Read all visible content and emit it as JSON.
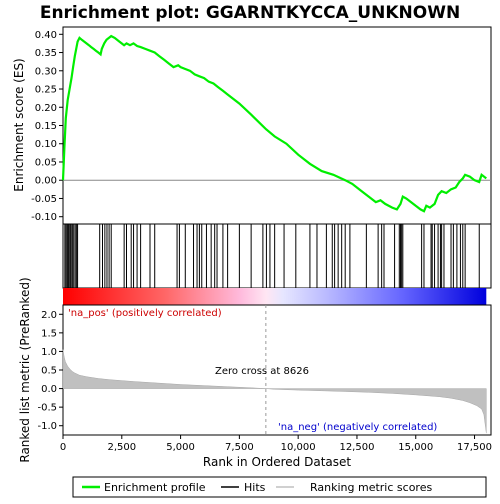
{
  "chart_data": {
    "type": "line",
    "title": "Enrichment plot: GGARNTKYCCA_UNKNOWN",
    "es_panel": {
      "ylabel": "Enrichment score (ES)",
      "ylim": [
        -0.12,
        0.42
      ],
      "yticks": [
        -0.1,
        -0.05,
        0.0,
        0.05,
        0.1,
        0.15,
        0.2,
        0.25,
        0.3,
        0.35,
        0.4
      ],
      "ytick_labels": [
        "-0.10",
        "-0.05",
        "0.00",
        "0.05",
        "0.10",
        "0.15",
        "0.20",
        "0.25",
        "0.30",
        "0.35",
        "0.40"
      ],
      "series": [
        {
          "name": "Enrichment profile",
          "color": "#00ee00",
          "x": [
            0,
            60,
            120,
            200,
            280,
            360,
            430,
            500,
            560,
            620,
            700,
            800,
            900,
            1000,
            1100,
            1200,
            1300,
            1400,
            1500,
            1600,
            1650,
            1750,
            1850,
            1950,
            2050,
            2200,
            2400,
            2600,
            2700,
            2850,
            3000,
            3150,
            3300,
            3500,
            3700,
            3900,
            4100,
            4300,
            4500,
            4700,
            4900,
            5000,
            5200,
            5400,
            5600,
            5800,
            6000,
            6200,
            6400,
            6600,
            6800,
            7000,
            7500,
            8000,
            8626,
            9000,
            9500,
            10000,
            10500,
            11000,
            11500,
            12000,
            12300,
            12700,
            13000,
            13300,
            13500,
            13700,
            14000,
            14200,
            14350,
            14450,
            14600,
            14800,
            15000,
            15200,
            15350,
            15450,
            15600,
            15800,
            15950,
            16100,
            16300,
            16500,
            16700,
            16850,
            17000,
            17100,
            17300,
            17500,
            17700,
            17800,
            18000
          ],
          "y": [
            0.0,
            0.09,
            0.17,
            0.22,
            0.25,
            0.28,
            0.31,
            0.34,
            0.36,
            0.38,
            0.39,
            0.385,
            0.38,
            0.375,
            0.37,
            0.365,
            0.36,
            0.355,
            0.35,
            0.345,
            0.36,
            0.375,
            0.385,
            0.39,
            0.395,
            0.39,
            0.38,
            0.37,
            0.375,
            0.37,
            0.375,
            0.368,
            0.365,
            0.36,
            0.355,
            0.35,
            0.34,
            0.33,
            0.32,
            0.31,
            0.315,
            0.31,
            0.305,
            0.3,
            0.29,
            0.285,
            0.28,
            0.27,
            0.265,
            0.255,
            0.245,
            0.235,
            0.21,
            0.18,
            0.14,
            0.12,
            0.1,
            0.07,
            0.045,
            0.025,
            0.015,
            0.0,
            -0.01,
            -0.03,
            -0.045,
            -0.06,
            -0.055,
            -0.065,
            -0.075,
            -0.08,
            -0.065,
            -0.045,
            -0.05,
            -0.06,
            -0.07,
            -0.08,
            -0.085,
            -0.07,
            -0.075,
            -0.065,
            -0.04,
            -0.03,
            -0.035,
            -0.025,
            -0.02,
            -0.005,
            0.005,
            0.015,
            0.01,
            0.0,
            -0.005,
            0.015,
            0.005
          ]
        }
      ]
    },
    "hits_panel": {
      "legend_label": "Hits",
      "hit_positions": [
        80,
        130,
        180,
        220,
        260,
        310,
        350,
        410,
        460,
        520,
        580,
        620,
        1560,
        1680,
        1780,
        1870,
        1960,
        2050,
        2600,
        2700,
        2900,
        3000,
        3150,
        3300,
        3700,
        3900,
        4850,
        4950,
        5200,
        5550,
        5700,
        5800,
        5900,
        6100,
        6300,
        6450,
        6550,
        6800,
        7000,
        7500,
        8000,
        8500,
        8650,
        8800,
        9000,
        9400,
        9900,
        10500,
        10800,
        11200,
        11450,
        11550,
        11700,
        11850,
        12000,
        12200,
        12900,
        13400,
        13550,
        13650,
        14100,
        14300,
        14350,
        14400,
        14450,
        15250,
        15350,
        15650,
        15700,
        15800,
        15950,
        16050,
        16100,
        16200,
        16500,
        16600,
        16750,
        16900,
        17000,
        17100,
        17700
      ]
    },
    "rank_panel": {
      "ylabel": "Ranked list metric (PreRanked)",
      "legend_label": "Ranking metric scores",
      "ylim": [
        -1.25,
        2.25
      ],
      "yticks": [
        -1.0,
        -0.5,
        0.0,
        0.5,
        1.0,
        1.5,
        2.0
      ],
      "ytick_labels": [
        "-1.0",
        "-0.5",
        "0.0",
        "0.5",
        "1.0",
        "1.5",
        "2.0"
      ],
      "x": [
        0,
        50,
        100,
        200,
        300,
        400,
        500,
        700,
        1000,
        1500,
        2000,
        3000,
        4000,
        5000,
        6000,
        7000,
        8000,
        8626,
        9000,
        10000,
        11000,
        12000,
        13000,
        14000,
        15000,
        16000,
        16500,
        17000,
        17300,
        17600,
        17800,
        17900,
        17950,
        18000
      ],
      "values": [
        1.05,
        0.85,
        0.72,
        0.6,
        0.52,
        0.46,
        0.42,
        0.36,
        0.32,
        0.27,
        0.24,
        0.19,
        0.15,
        0.11,
        0.08,
        0.05,
        0.02,
        0.0,
        -0.02,
        -0.04,
        -0.06,
        -0.08,
        -0.1,
        -0.13,
        -0.17,
        -0.22,
        -0.26,
        -0.32,
        -0.38,
        -0.46,
        -0.55,
        -0.7,
        -0.95,
        -1.2
      ],
      "zero_cross_label": "Zero cross at 8626",
      "zero_cross": 8626,
      "pos_label": "'na_pos' (positively correlated)",
      "neg_label": "'na_neg' (negatively correlated)"
    },
    "xaxis": {
      "xlabel": "Rank in Ordered Dataset",
      "xlim": [
        0,
        18200
      ],
      "xticks": [
        0,
        2500,
        5000,
        7500,
        10000,
        12500,
        15000,
        17500
      ],
      "xtick_labels": [
        "0",
        "2,500",
        "5,000",
        "7,500",
        "10,000",
        "12,500",
        "15,000",
        "17,500"
      ],
      "n_genes": 18000
    },
    "legend": {
      "items": [
        {
          "label": "Enrichment profile",
          "color": "#00ee00"
        },
        {
          "label": "Hits",
          "color": "#000000"
        },
        {
          "label": "Ranking metric scores",
          "color": "#c0c0c0"
        }
      ]
    },
    "colors": {
      "profile": "#00ee00",
      "pos": "#ff0000",
      "neg": "#0000ff",
      "metric_fill": "#c0c0c0",
      "pos_text": "#cc0000",
      "neg_text": "#0000cc"
    }
  }
}
